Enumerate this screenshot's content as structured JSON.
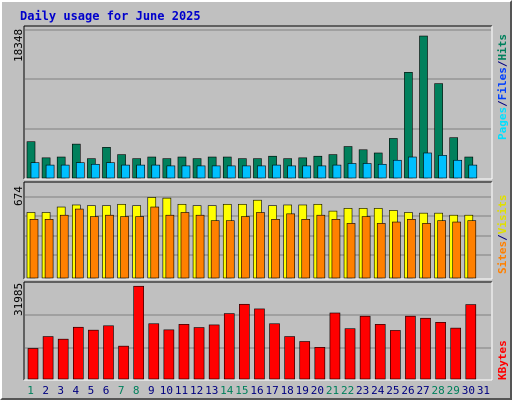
{
  "title": "Daily usage for June 2025",
  "colors": {
    "hits": "#00805c",
    "files": "#00c0ff",
    "pages": "#00e0ff",
    "visits": "#ffff00",
    "sites": "#ff8000",
    "kbytes": "#ff0000",
    "weekend": "#00805c",
    "weekday": "#000080",
    "title": "#0000cc",
    "panel_bg": "#c0c0c0"
  },
  "panel_labels": {
    "top": [
      {
        "text": "Pages",
        "color": "#00e0ff"
      },
      {
        "text": "/",
        "color": "#000080"
      },
      {
        "text": "Files",
        "color": "#0040ff"
      },
      {
        "text": "/",
        "color": "#000080"
      },
      {
        "text": "Hits",
        "color": "#00805c"
      }
    ],
    "mid": [
      {
        "text": "Sites",
        "color": "#ff8000"
      },
      {
        "text": "/",
        "color": "#000080"
      },
      {
        "text": "Visits",
        "color": "#e0e000"
      }
    ],
    "bot": [
      {
        "text": "KBytes",
        "color": "#ff0000"
      }
    ]
  },
  "chart_data": [
    {
      "type": "bar",
      "panel": "hits-files",
      "ymax_label": "18348",
      "ylim": [
        0,
        18348
      ],
      "categories": [
        "1",
        "2",
        "3",
        "4",
        "5",
        "6",
        "7",
        "8",
        "9",
        "10",
        "11",
        "12",
        "13",
        "14",
        "15",
        "16",
        "17",
        "18",
        "19",
        "20",
        "21",
        "22",
        "23",
        "24",
        "25",
        "26",
        "27",
        "28",
        "29",
        "30"
      ],
      "series": [
        {
          "name": "Hits",
          "values": [
            4500,
            2500,
            2600,
            4200,
            2400,
            3800,
            2900,
            2400,
            2600,
            2400,
            2600,
            2400,
            2600,
            2600,
            2400,
            2400,
            2700,
            2400,
            2500,
            2700,
            2900,
            3900,
            3500,
            3100,
            4900,
            13100,
            17600,
            11700,
            5000,
            2600
          ]
        },
        {
          "name": "Files",
          "values": [
            1900,
            1600,
            1600,
            1900,
            1700,
            1900,
            1600,
            1600,
            1600,
            1500,
            1500,
            1500,
            1500,
            1500,
            1500,
            1500,
            1600,
            1500,
            1500,
            1500,
            1600,
            1800,
            1800,
            1700,
            2200,
            2600,
            3100,
            2800,
            2200,
            1600
          ]
        }
      ]
    },
    {
      "type": "bar",
      "panel": "visits-sites",
      "ymax_label": "674",
      "ylim": [
        0,
        674
      ],
      "categories": [
        "1",
        "2",
        "3",
        "4",
        "5",
        "6",
        "7",
        "8",
        "9",
        "10",
        "11",
        "12",
        "13",
        "14",
        "15",
        "16",
        "17",
        "18",
        "19",
        "20",
        "21",
        "22",
        "23",
        "24",
        "25",
        "26",
        "27",
        "28",
        "29",
        "30"
      ],
      "series": [
        {
          "name": "Visits",
          "values": [
            480,
            480,
            520,
            535,
            530,
            530,
            540,
            530,
            590,
            585,
            540,
            530,
            530,
            540,
            540,
            570,
            530,
            535,
            535,
            540,
            490,
            510,
            510,
            510,
            495,
            480,
            475,
            475,
            460,
            460
          ]
        },
        {
          "name": "Sites",
          "values": [
            430,
            430,
            460,
            505,
            450,
            460,
            450,
            450,
            520,
            460,
            480,
            460,
            420,
            420,
            450,
            480,
            430,
            470,
            430,
            460,
            430,
            400,
            450,
            400,
            410,
            430,
            400,
            420,
            410,
            420
          ]
        }
      ]
    },
    {
      "type": "bar",
      "panel": "kbytes",
      "ymax_label": "31985",
      "ylim": [
        0,
        31985
      ],
      "categories": [
        "1",
        "2",
        "3",
        "4",
        "5",
        "6",
        "7",
        "8",
        "9",
        "10",
        "11",
        "12",
        "13",
        "14",
        "15",
        "16",
        "17",
        "18",
        "19",
        "20",
        "21",
        "22",
        "23",
        "24",
        "25",
        "26",
        "27",
        "28",
        "29",
        "30"
      ],
      "series": [
        {
          "name": "KBytes",
          "values": [
            10500,
            14600,
            13700,
            17800,
            16800,
            18300,
            11300,
            31900,
            19000,
            16900,
            18800,
            17700,
            18600,
            22500,
            25700,
            24100,
            19000,
            14600,
            12900,
            10900,
            22700,
            17300,
            21600,
            18800,
            16700,
            21600,
            20900,
            19500,
            17500,
            25600
          ]
        }
      ]
    }
  ],
  "x_labels": [
    "1",
    "2",
    "3",
    "4",
    "5",
    "6",
    "7",
    "8",
    "9",
    "10",
    "11",
    "12",
    "13",
    "14",
    "15",
    "16",
    "17",
    "18",
    "19",
    "20",
    "21",
    "22",
    "23",
    "24",
    "25",
    "26",
    "27",
    "28",
    "29",
    "30",
    "31"
  ],
  "weekend_days": [
    "1",
    "7",
    "8",
    "14",
    "15",
    "21",
    "22",
    "28",
    "29"
  ]
}
